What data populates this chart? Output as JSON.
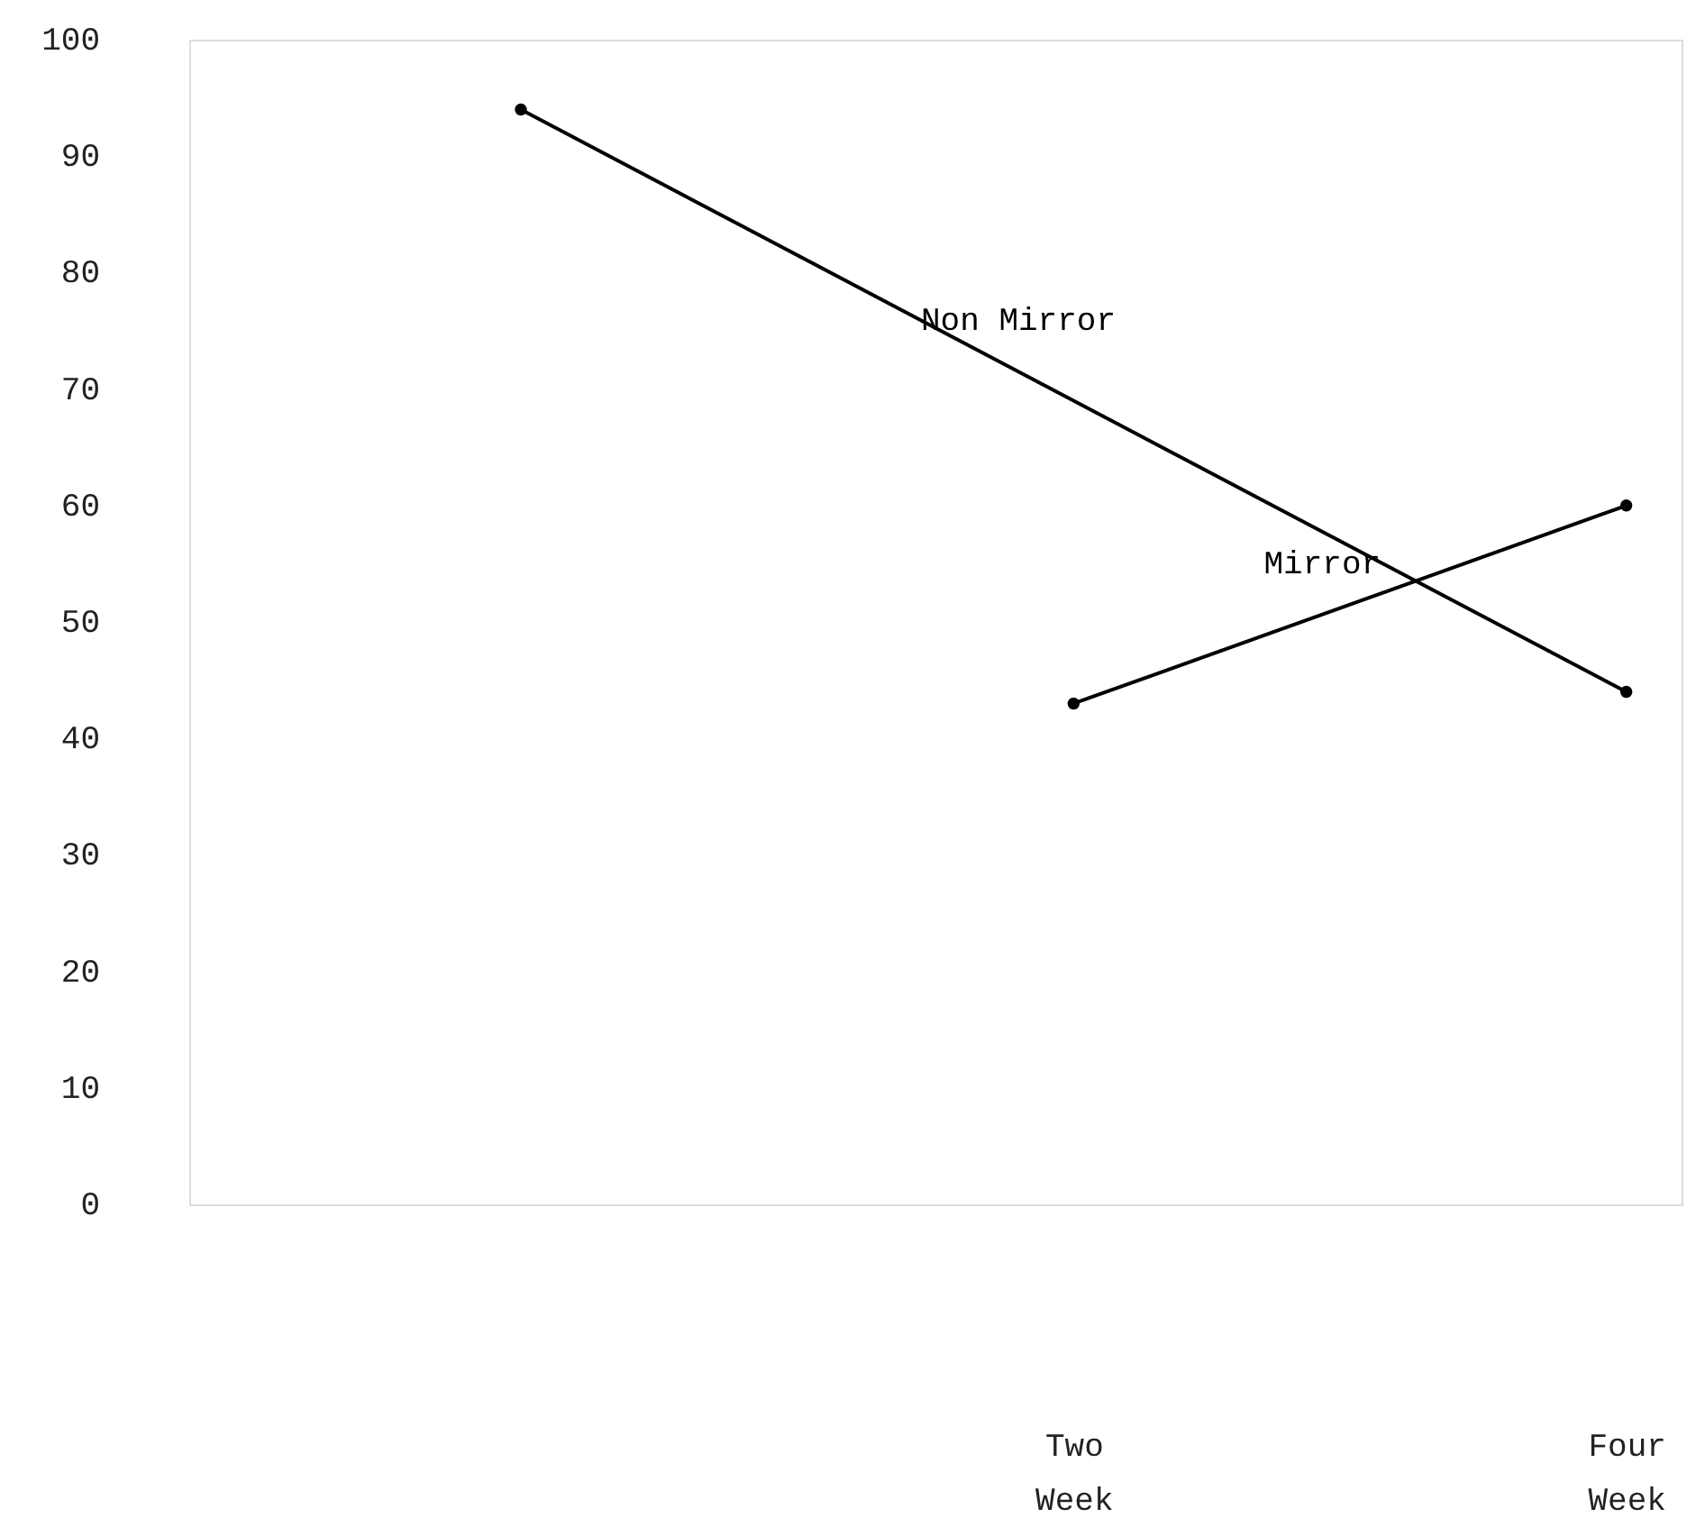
{
  "chart_data": {
    "type": "line",
    "marker": "circle",
    "line_style": "solid",
    "grid": false,
    "legend": false,
    "categories": [
      null,
      "Two Week",
      "Four Week"
    ],
    "ylim": [
      0,
      100
    ],
    "yticks": [
      0,
      10,
      20,
      30,
      40,
      50,
      60,
      70,
      80,
      90,
      100
    ],
    "series": [
      {
        "name": "Non Mirror",
        "color": "#000000",
        "values": [
          94,
          null,
          44
        ]
      },
      {
        "name": "Mirror",
        "color": "#000000",
        "values": [
          null,
          43,
          60
        ]
      }
    ]
  }
}
